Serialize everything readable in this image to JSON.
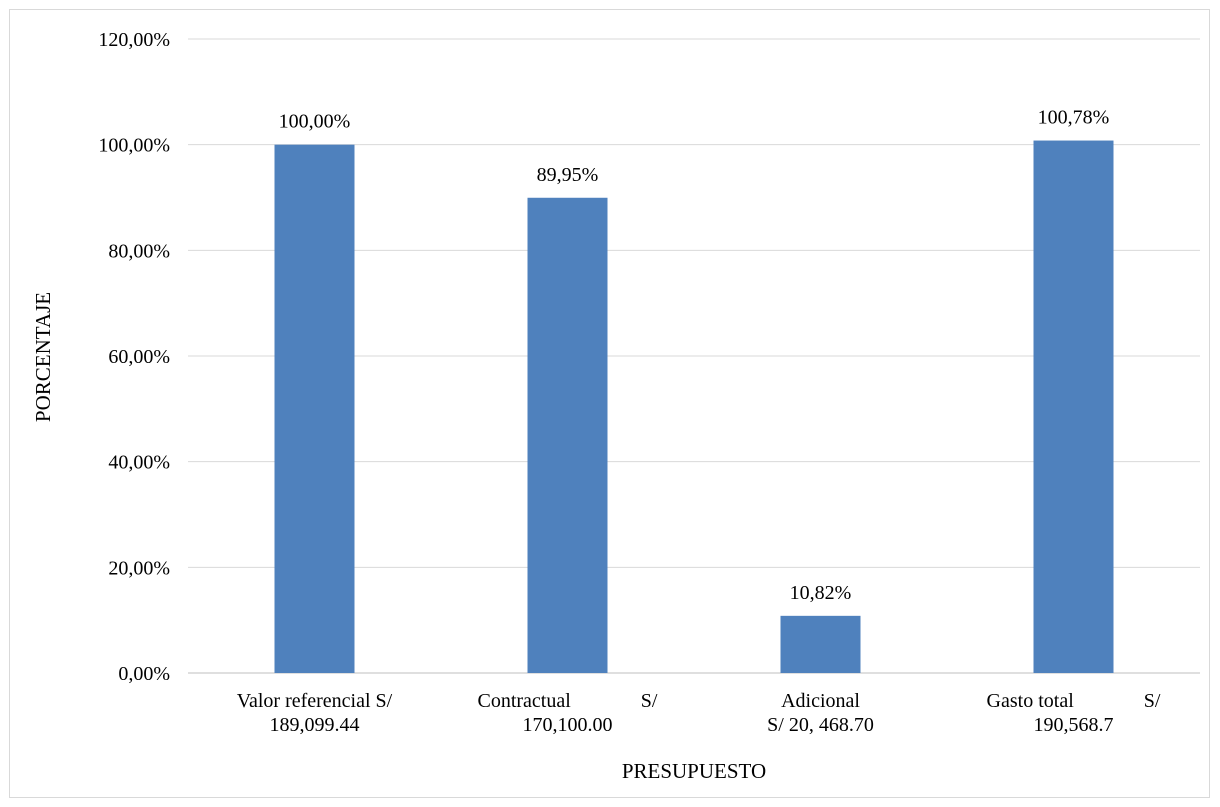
{
  "chart_data": {
    "type": "bar",
    "title": "",
    "xlabel": "PRESUPUESTO",
    "ylabel": "PORCENTAJE",
    "ylim": [
      0,
      120
    ],
    "ytick_values": [
      0,
      20,
      40,
      60,
      80,
      100,
      120
    ],
    "ytick_labels": [
      "0,00%",
      "20,00%",
      "40,00%",
      "60,00%",
      "80,00%",
      "100,00%",
      "120,00%"
    ],
    "categories": [
      [
        "Valor referencial S/",
        "189,099.44"
      ],
      [
        "Contractual              S/",
        "170,100.00"
      ],
      [
        "Adicional",
        "S/ 20, 468.70"
      ],
      [
        "Gasto total              S/",
        "190,568.7"
      ]
    ],
    "values": [
      100.0,
      89.95,
      10.82,
      100.78
    ],
    "data_labels": [
      "100,00%",
      "89,95%",
      "10,82%",
      "100,78%"
    ],
    "bar_color": "#4f81bd",
    "grid": true,
    "legend": "none"
  }
}
